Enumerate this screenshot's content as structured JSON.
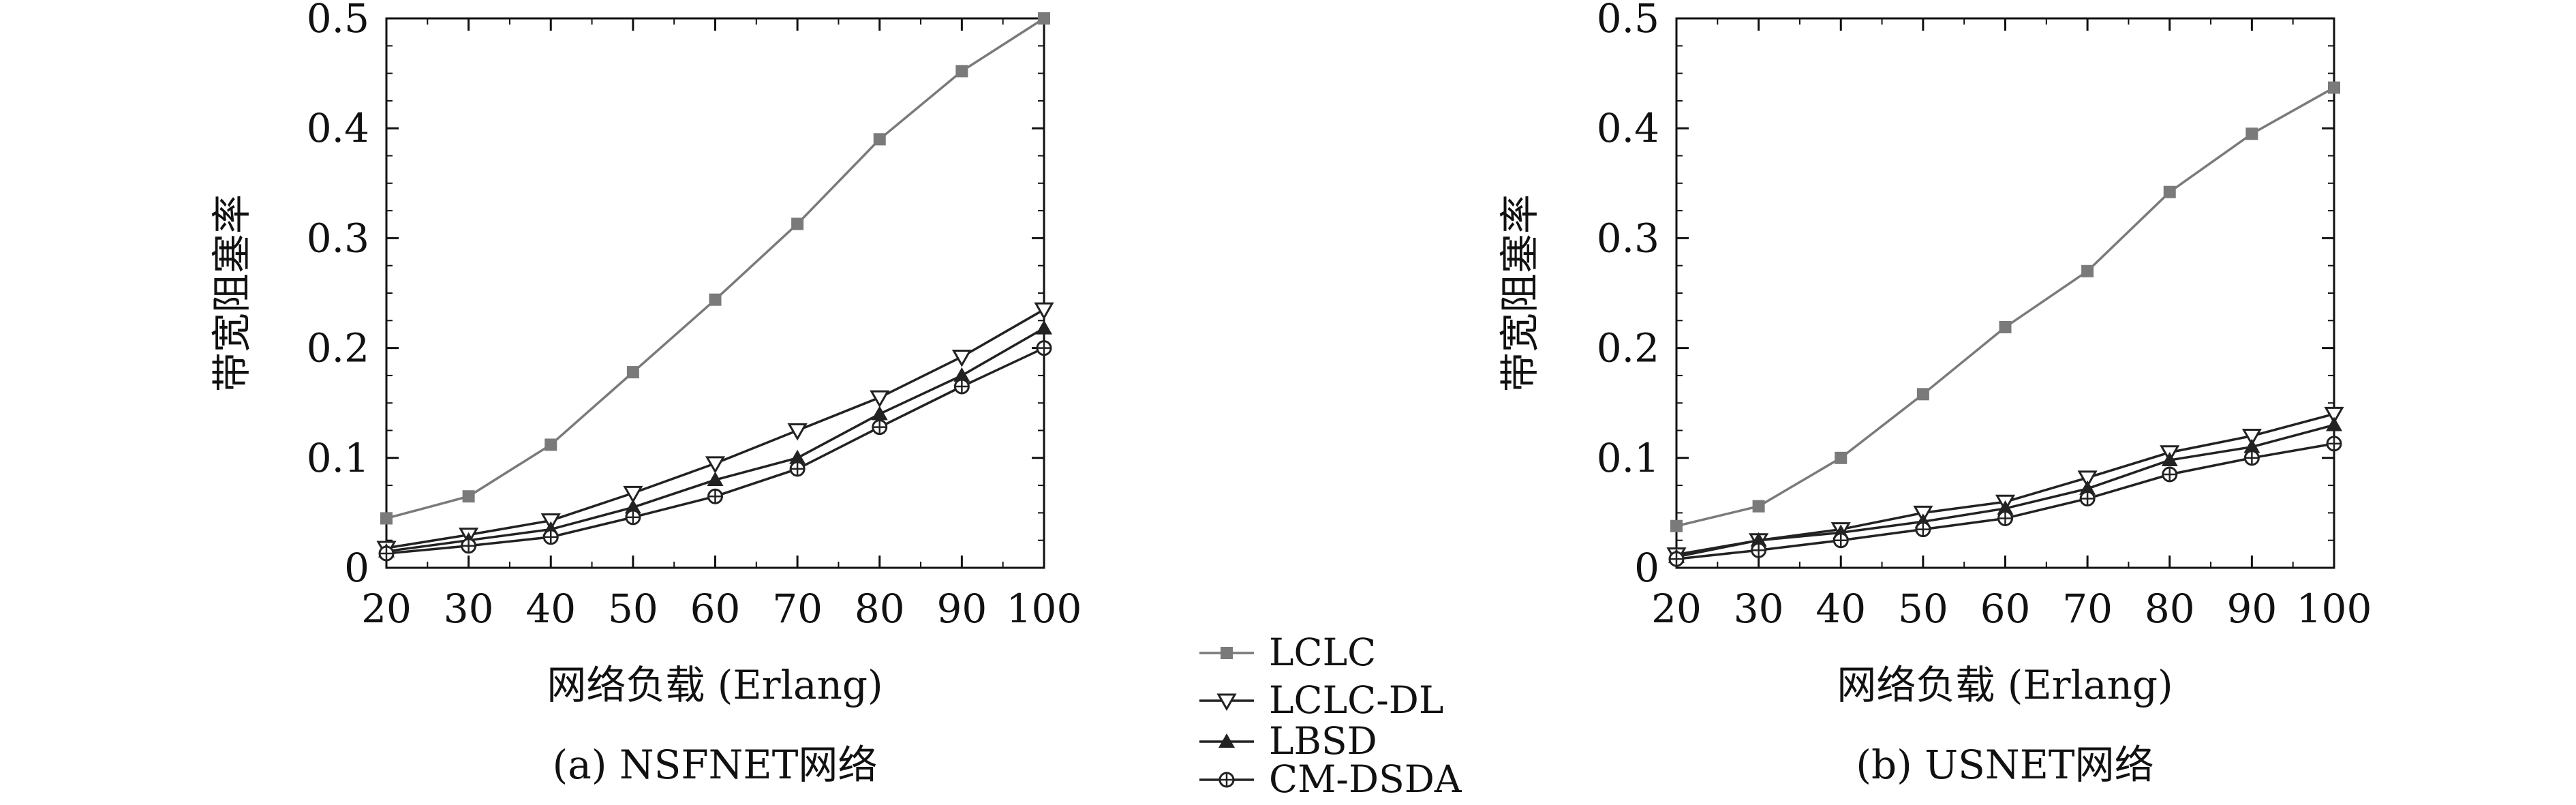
{
  "colors": {
    "lclc": "#7a7a7a",
    "others": "#222222",
    "axis": "#111111"
  },
  "legend": {
    "position": "bottom-center",
    "entries": [
      {
        "label": "LCLC",
        "marker": "filled-square",
        "color": "#7a7a7a"
      },
      {
        "label": "LCLC-DL",
        "marker": "open-triangle-down",
        "color": "#222222"
      },
      {
        "label": "LBSD",
        "marker": "filled-triangle-up",
        "color": "#222222"
      },
      {
        "label": "CM-DSDA",
        "marker": "circle-plus",
        "color": "#222222"
      }
    ]
  },
  "chart_data": [
    {
      "type": "line",
      "caption": "(a) NSFNET网络",
      "xlabel": "网络负载 (Erlang)",
      "ylabel": "带宽阻塞率",
      "x": [
        20,
        30,
        40,
        50,
        60,
        70,
        80,
        90,
        100
      ],
      "xlim": [
        20,
        100
      ],
      "ylim": [
        0,
        0.5
      ],
      "xticks": [
        "20",
        "30",
        "40",
        "50",
        "60",
        "70",
        "80",
        "90",
        "100"
      ],
      "yticks": [
        "0",
        "0.1",
        "0.2",
        "0.3",
        "0.4",
        "0.5"
      ],
      "grid": false,
      "series": [
        {
          "name": "LCLC",
          "values": [
            0.045,
            0.065,
            0.112,
            0.178,
            0.244,
            0.313,
            0.39,
            0.452,
            0.5
          ]
        },
        {
          "name": "LCLC-DL",
          "values": [
            0.018,
            0.03,
            0.043,
            0.068,
            0.095,
            0.125,
            0.155,
            0.192,
            0.235
          ]
        },
        {
          "name": "LBSD",
          "values": [
            0.015,
            0.025,
            0.035,
            0.055,
            0.08,
            0.1,
            0.14,
            0.175,
            0.218
          ]
        },
        {
          "name": "CM-DSDA",
          "values": [
            0.013,
            0.02,
            0.028,
            0.046,
            0.065,
            0.09,
            0.128,
            0.165,
            0.2
          ]
        }
      ]
    },
    {
      "type": "line",
      "caption": "(b) USNET网络",
      "xlabel": "网络负载 (Erlang)",
      "ylabel": "带宽阻塞率",
      "x": [
        20,
        30,
        40,
        50,
        60,
        70,
        80,
        90,
        100
      ],
      "xlim": [
        20,
        100
      ],
      "ylim": [
        0,
        0.5
      ],
      "xticks": [
        "20",
        "30",
        "40",
        "50",
        "60",
        "70",
        "80",
        "90",
        "100"
      ],
      "yticks": [
        "0",
        "0.1",
        "0.2",
        "0.3",
        "0.4",
        "0.5"
      ],
      "grid": false,
      "series": [
        {
          "name": "LCLC",
          "values": [
            0.038,
            0.056,
            0.1,
            0.158,
            0.219,
            0.27,
            0.342,
            0.395,
            0.437
          ]
        },
        {
          "name": "LCLC-DL",
          "values": [
            0.012,
            0.025,
            0.035,
            0.05,
            0.06,
            0.082,
            0.105,
            0.12,
            0.14
          ]
        },
        {
          "name": "LBSD",
          "values": [
            0.01,
            0.025,
            0.032,
            0.042,
            0.054,
            0.072,
            0.098,
            0.11,
            0.13
          ]
        },
        {
          "name": "CM-DSDA",
          "values": [
            0.008,
            0.016,
            0.025,
            0.035,
            0.045,
            0.063,
            0.085,
            0.1,
            0.113
          ]
        }
      ]
    }
  ]
}
